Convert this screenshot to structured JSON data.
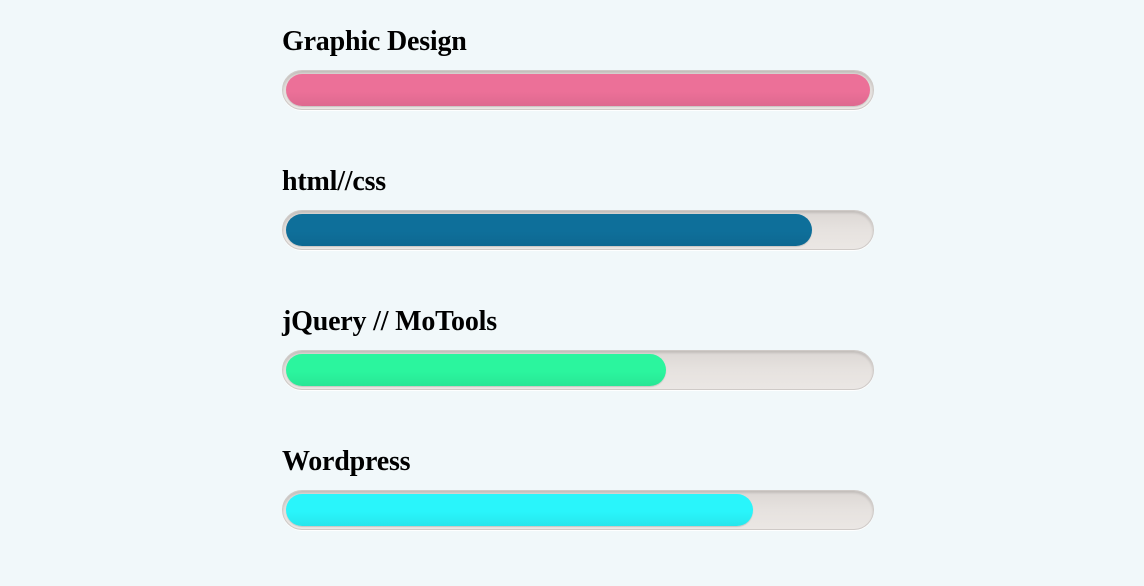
{
  "skills": [
    {
      "label": "Graphic Design",
      "percent": 100,
      "color": "#ec7098"
    },
    {
      "label": "html//css",
      "percent": 90,
      "color": "#0e6f9a"
    },
    {
      "label": "jQuery // MoTools",
      "percent": 65,
      "color": "#2bf59e"
    },
    {
      "label": "Wordpress",
      "percent": 80,
      "color": "#29f5fb"
    }
  ]
}
